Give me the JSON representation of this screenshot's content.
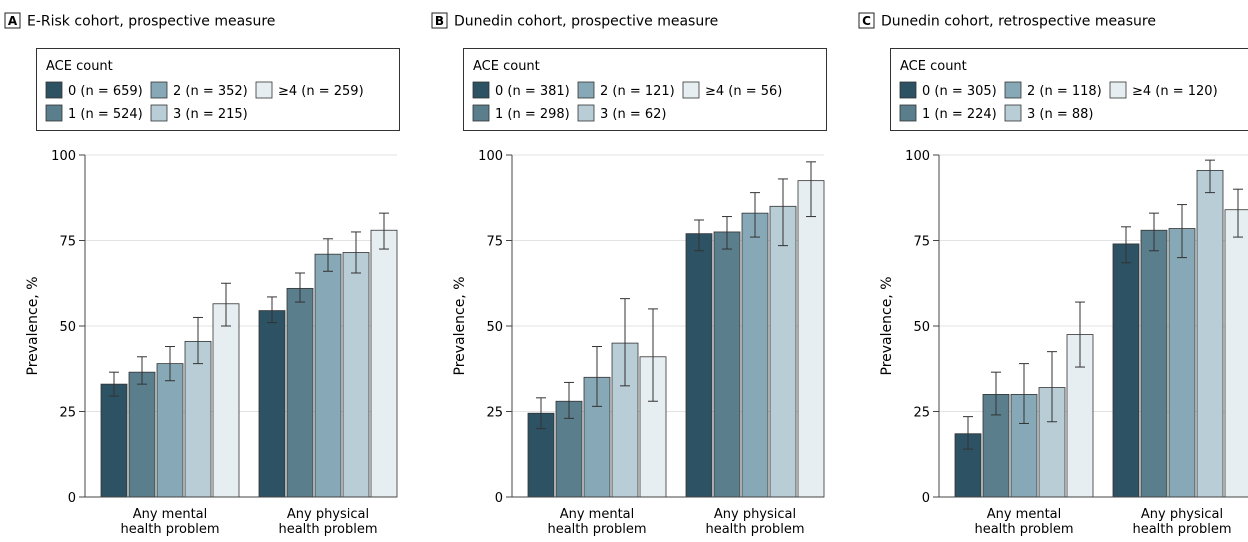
{
  "colors": [
    "#2c5263",
    "#5b7e8c",
    "#87a8b6",
    "#b8cdd6",
    "#e7eef1"
  ],
  "chart_data": [
    {
      "type": "bar",
      "panel_letter": "A",
      "title": "E-Risk cohort, prospective measure",
      "legend_title": "ACE count",
      "ylabel": "Prevalence, %",
      "ylim": [
        0,
        100
      ],
      "yticks": [
        "0",
        "25",
        "50",
        "75",
        "100"
      ],
      "grid": true,
      "categories": [
        [
          "Any mental",
          "health problem"
        ],
        [
          "Any physical",
          "health problem"
        ]
      ],
      "series": [
        {
          "name": "0 (n = 659)",
          "values": [
            33,
            54.5
          ],
          "ci_low": [
            29.5,
            51
          ],
          "ci_high": [
            36.5,
            58.5
          ]
        },
        {
          "name": "1 (n = 524)",
          "values": [
            36.5,
            61
          ],
          "ci_low": [
            33,
            57
          ],
          "ci_high": [
            41,
            65.5
          ]
        },
        {
          "name": "2 (n = 352)",
          "values": [
            39,
            71
          ],
          "ci_low": [
            34,
            66
          ],
          "ci_high": [
            44,
            75.5
          ]
        },
        {
          "name": "3 (n = 215)",
          "values": [
            45.5,
            71.5
          ],
          "ci_low": [
            39,
            65.5
          ],
          "ci_high": [
            52.5,
            77.5
          ]
        },
        {
          "name": "≥4 (n = 259)",
          "values": [
            56.5,
            78
          ],
          "ci_low": [
            50,
            72.5
          ],
          "ci_high": [
            62.5,
            83
          ]
        }
      ]
    },
    {
      "type": "bar",
      "panel_letter": "B",
      "title": "Dunedin cohort, prospective measure",
      "legend_title": "ACE count",
      "ylabel": "Prevalence, %",
      "ylim": [
        0,
        100
      ],
      "yticks": [
        "0",
        "25",
        "50",
        "75",
        "100"
      ],
      "grid": true,
      "categories": [
        [
          "Any mental",
          "health problem"
        ],
        [
          "Any physical",
          "health problem"
        ]
      ],
      "series": [
        {
          "name": "0 (n = 381)",
          "values": [
            24.5,
            77
          ],
          "ci_low": [
            20,
            72
          ],
          "ci_high": [
            29,
            81
          ]
        },
        {
          "name": "1 (n = 298)",
          "values": [
            28,
            77.5
          ],
          "ci_low": [
            23,
            72.5
          ],
          "ci_high": [
            33.5,
            82
          ]
        },
        {
          "name": "2 (n = 121)",
          "values": [
            35,
            83
          ],
          "ci_low": [
            26.5,
            76
          ],
          "ci_high": [
            44,
            89
          ]
        },
        {
          "name": "3 (n = 62)",
          "values": [
            45,
            85
          ],
          "ci_low": [
            32.5,
            73.5
          ],
          "ci_high": [
            58,
            93
          ]
        },
        {
          "name": "≥4 (n = 56)",
          "values": [
            41,
            92.5
          ],
          "ci_low": [
            28,
            82
          ],
          "ci_high": [
            55,
            98
          ]
        }
      ]
    },
    {
      "type": "bar",
      "panel_letter": "C",
      "title": "Dunedin cohort, retrospective measure",
      "legend_title": "ACE count",
      "ylabel": "Prevalence, %",
      "ylim": [
        0,
        100
      ],
      "yticks": [
        "0",
        "25",
        "50",
        "75",
        "100"
      ],
      "grid": true,
      "categories": [
        [
          "Any mental",
          "health problem"
        ],
        [
          "Any physical",
          "health problem"
        ]
      ],
      "series": [
        {
          "name": "0 (n = 305)",
          "values": [
            18.5,
            74
          ],
          "ci_low": [
            14,
            68.5
          ],
          "ci_high": [
            23.5,
            79
          ]
        },
        {
          "name": "1 (n = 224)",
          "values": [
            30,
            78
          ],
          "ci_low": [
            24,
            72
          ],
          "ci_high": [
            36.5,
            83
          ]
        },
        {
          "name": "2 (n = 118)",
          "values": [
            30,
            78.5
          ],
          "ci_low": [
            21.5,
            70
          ],
          "ci_high": [
            39,
            85.5
          ]
        },
        {
          "name": "3 (n = 88)",
          "values": [
            32,
            95.5
          ],
          "ci_low": [
            22,
            89
          ],
          "ci_high": [
            42.5,
            98.5
          ]
        },
        {
          "name": "≥4 (n = 120)",
          "values": [
            47.5,
            84
          ],
          "ci_low": [
            38,
            76
          ],
          "ci_high": [
            57,
            90
          ]
        }
      ]
    }
  ]
}
